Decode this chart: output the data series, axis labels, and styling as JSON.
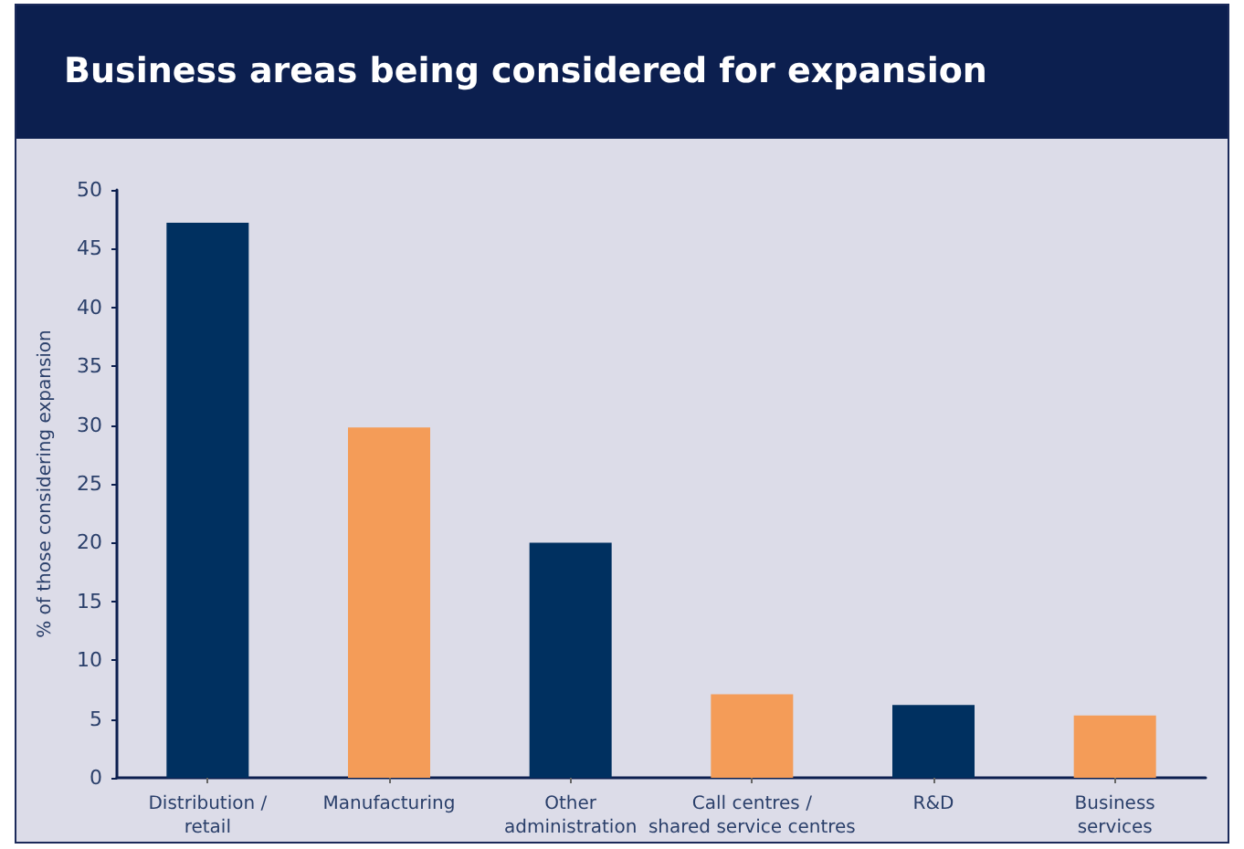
{
  "chart_data": {
    "type": "bar",
    "title": "Business areas being considered for expansion",
    "ylabel": "% of those considering expansion",
    "categories": [
      "Distribution /\nretail",
      "Manufacturing",
      "Other\nadministration",
      "Call centres /\nshared service centres",
      "R&D",
      "Business\nservices"
    ],
    "values": [
      47.2,
      29.8,
      20.0,
      7.1,
      6.2,
      5.3
    ],
    "colors": [
      "#003060",
      "#f49c58",
      "#003060",
      "#f49c58",
      "#003060",
      "#f49c58"
    ],
    "ylim": [
      0,
      50
    ],
    "yticks": [
      0,
      5,
      10,
      15,
      20,
      25,
      30,
      35,
      40,
      45,
      50
    ]
  }
}
